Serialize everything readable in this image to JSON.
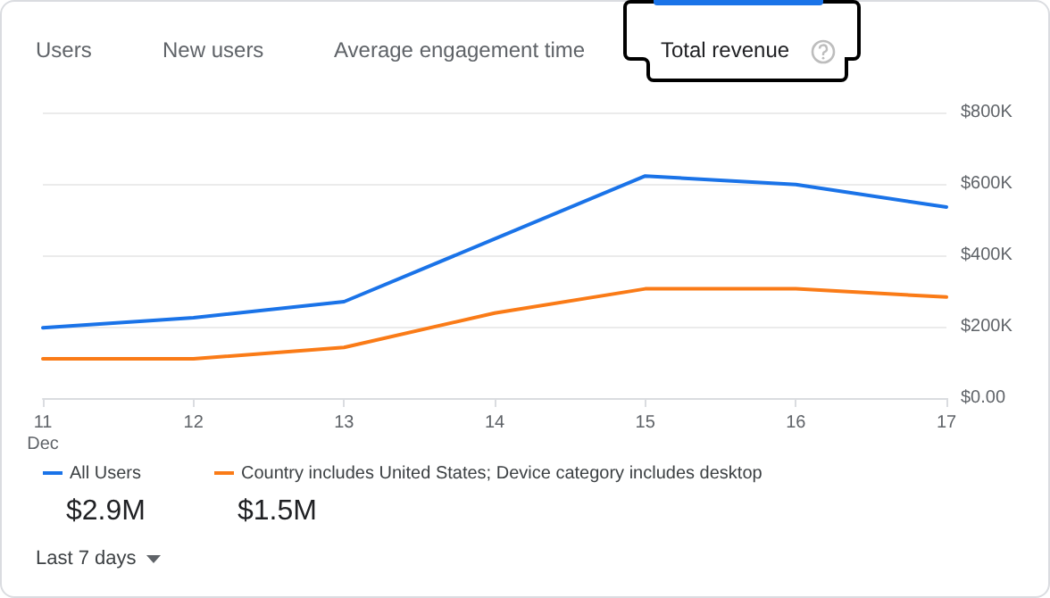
{
  "chart_data": {
    "type": "line",
    "title": "Total revenue",
    "categories": [
      "11\nDec",
      "12",
      "13",
      "14",
      "15",
      "16",
      "17"
    ],
    "series": [
      {
        "name": "All Users",
        "color": "#1a73e8",
        "values": [
          197000,
          225000,
          270000,
          446000,
          622000,
          598000,
          535000
        ]
      },
      {
        "name": "Country includes United States; Device category includes desktop",
        "color": "#fa7b17",
        "values": [
          110000,
          110000,
          142000,
          238000,
          306000,
          306000,
          283000
        ]
      }
    ],
    "ylim": [
      0,
      800000
    ],
    "yticks": [
      {
        "value": 0,
        "label": "$0.00"
      },
      {
        "value": 200000,
        "label": "$200K"
      },
      {
        "value": 400000,
        "label": "$400K"
      },
      {
        "value": 600000,
        "label": "$600K"
      },
      {
        "value": 800000,
        "label": "$800K"
      }
    ],
    "grid": "y",
    "legend": "bottom left",
    "marker": "none",
    "line_style": "solid",
    "annotations": [
      "Users",
      "New users",
      "Average engagement time",
      "$2.9M",
      "$1.5M",
      "Last 7 days"
    ]
  }
}
